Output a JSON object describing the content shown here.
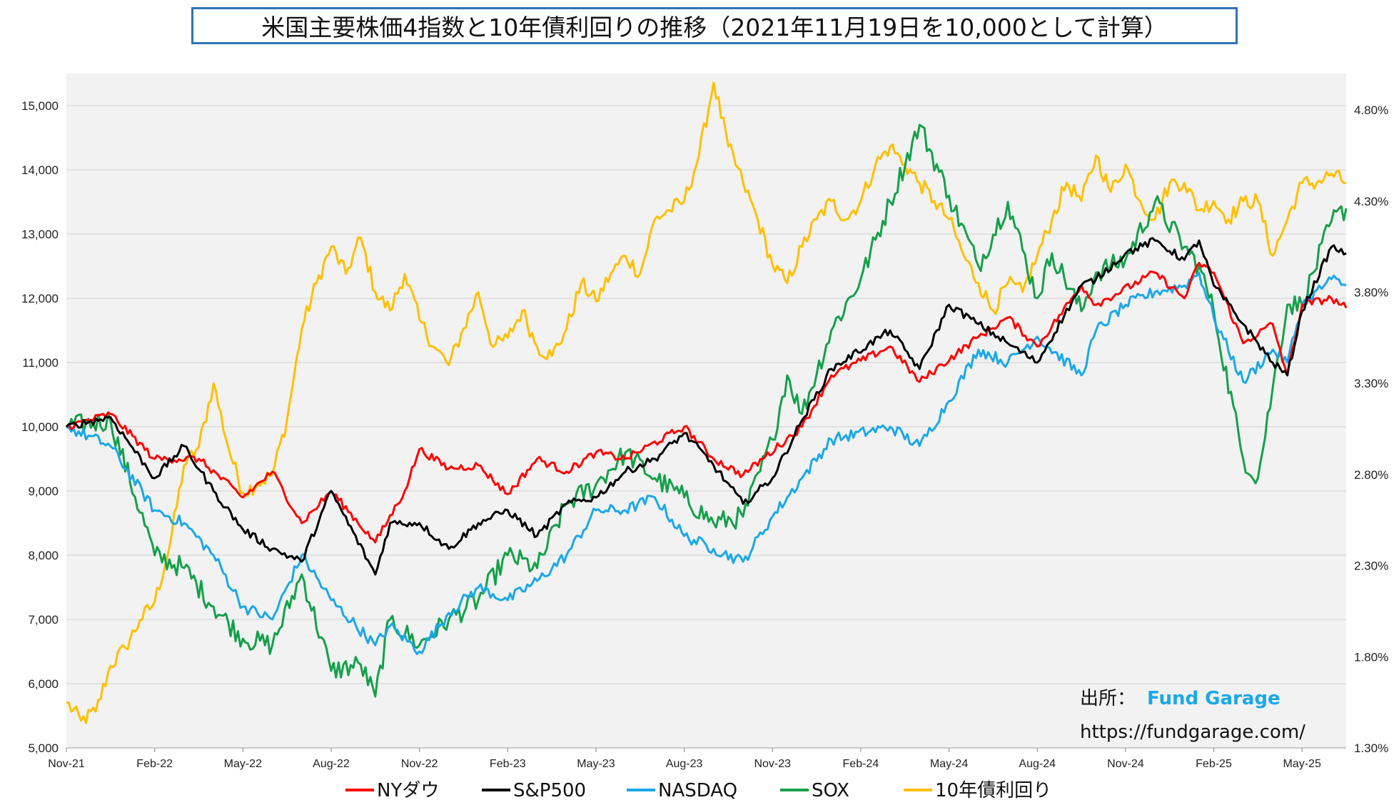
{
  "chart_data": {
    "type": "line",
    "title": "米国主要株価4指数と10年債利回りの推移（2021年11月19日を10,000として計算）",
    "x_ticks": [
      "Nov-21",
      "Feb-22",
      "May-22",
      "Aug-22",
      "Nov-22",
      "Feb-23",
      "May-23",
      "Aug-23",
      "Nov-23",
      "Feb-24",
      "May-24",
      "Aug-24",
      "Nov-24",
      "Feb-25",
      "May-25"
    ],
    "y_left": {
      "ylim": [
        5000,
        15500
      ],
      "ticks": [
        5000,
        6000,
        7000,
        8000,
        9000,
        10000,
        11000,
        12000,
        13000,
        14000,
        15000
      ],
      "tick_labels": [
        "5,000",
        "6,000",
        "7,000",
        "8,000",
        "9,000",
        "10,000",
        "11,000",
        "12,000",
        "13,000",
        "14,000",
        "15,000"
      ]
    },
    "y_right": {
      "ylim": [
        1.3,
        5.0
      ],
      "ticks": [
        1.3,
        1.8,
        2.3,
        2.8,
        3.3,
        3.8,
        4.3,
        4.8
      ],
      "tick_labels": [
        "1.30%",
        "1.80%",
        "2.30%",
        "2.80%",
        "3.30%",
        "3.80%",
        "4.30%",
        "4.80%"
      ]
    },
    "grid": true,
    "legend_position": "bottom",
    "x_range_months": [
      0,
      43.5
    ],
    "series": [
      {
        "name": "NYダウ",
        "color": "#ff0000",
        "axis": "left",
        "x": [
          0,
          1.5,
          3,
          4.5,
          6,
          7,
          8,
          9,
          10.5,
          11.5,
          12,
          13,
          14,
          15,
          16,
          17,
          18,
          19,
          21,
          22,
          23,
          25,
          26,
          28,
          29,
          31,
          32,
          33,
          34.5,
          35,
          37,
          38,
          38.5,
          39,
          40,
          41,
          41.5,
          42,
          43,
          43.5
        ],
        "y": [
          10000,
          10200,
          9500,
          9500,
          8900,
          9300,
          8500,
          9000,
          8200,
          9000,
          9650,
          9350,
          9400,
          8950,
          9500,
          9300,
          9600,
          9500,
          10000,
          9500,
          9250,
          10000,
          10800,
          11250,
          10700,
          11400,
          11700,
          11250,
          12200,
          11900,
          12400,
          12000,
          12550,
          12400,
          11300,
          11600,
          10800,
          11900,
          12000,
          11850
        ]
      },
      {
        "name": "S&P500",
        "color": "#000000",
        "axis": "left",
        "x": [
          0,
          1.5,
          3,
          4,
          5,
          6,
          7,
          8,
          9,
          10.5,
          11,
          12,
          13,
          14,
          15,
          16,
          17,
          18,
          19,
          20,
          21,
          22,
          23,
          24,
          25,
          26,
          28,
          29,
          30,
          31,
          32,
          33,
          34.5,
          35,
          36,
          37,
          38,
          38.5,
          39,
          40,
          41,
          41.5,
          42,
          43,
          43.5
        ],
        "y": [
          10000,
          10150,
          9200,
          9700,
          9000,
          8400,
          8100,
          7900,
          9000,
          7700,
          8500,
          8500,
          8100,
          8500,
          8700,
          8300,
          8800,
          8900,
          9300,
          9500,
          9900,
          9400,
          8800,
          9200,
          10100,
          10900,
          11500,
          10900,
          11900,
          11600,
          11300,
          11000,
          12200,
          12300,
          12700,
          12900,
          12600,
          12900,
          12200,
          11600,
          11000,
          10800,
          11800,
          12800,
          12700
        ]
      },
      {
        "name": "NASDAQ",
        "color": "#1aa8e8",
        "axis": "left",
        "x": [
          0,
          1.5,
          3,
          4,
          5,
          6,
          7,
          8,
          9,
          10.5,
          11,
          12,
          13,
          14,
          15,
          16,
          17,
          18,
          19,
          20,
          21,
          22,
          23,
          24,
          25,
          26,
          28,
          29,
          30,
          31,
          32,
          33,
          34.5,
          35,
          36,
          37,
          38,
          38.5,
          39,
          40,
          41,
          41.5,
          42,
          43,
          43.5
        ],
        "y": [
          10000,
          9700,
          8700,
          8500,
          8000,
          7200,
          7000,
          8000,
          7300,
          6600,
          6900,
          6500,
          7100,
          7500,
          7300,
          7600,
          8000,
          8700,
          8700,
          8900,
          8300,
          8100,
          7900,
          8600,
          9200,
          9800,
          10000,
          9700,
          10400,
          11200,
          11000,
          11400,
          10800,
          11500,
          11900,
          12100,
          12200,
          12400,
          11700,
          10700,
          11200,
          11000,
          11900,
          12300,
          12200
        ]
      },
      {
        "name": "SOX",
        "color": "#14a04a",
        "axis": "left",
        "x": [
          0,
          1.5,
          3,
          4,
          5,
          6,
          7,
          8,
          9,
          10,
          10.5,
          11,
          12,
          13,
          14,
          15,
          16,
          17,
          18,
          19,
          20,
          21,
          22,
          23,
          24,
          24.5,
          25,
          26,
          27,
          28,
          29,
          30,
          31,
          32,
          33,
          33.5,
          34.5,
          35,
          36,
          37,
          38,
          38.5,
          39,
          40,
          40.5,
          41,
          41.5,
          42,
          43,
          43.5
        ],
        "y": [
          10000,
          10100,
          8000,
          7800,
          7200,
          6700,
          6600,
          7700,
          6200,
          6300,
          5800,
          7000,
          6600,
          7000,
          7300,
          8000,
          7800,
          8800,
          9100,
          9600,
          9200,
          8900,
          8500,
          8600,
          9800,
          10800,
          10200,
          11500,
          12300,
          13500,
          14700,
          13600,
          12500,
          13500,
          12000,
          12700,
          11800,
          12400,
          12600,
          13500,
          12800,
          12500,
          11800,
          9500,
          9200,
          10600,
          11900,
          11900,
          13200,
          13400
        ]
      },
      {
        "name": "10年債利回り",
        "color": "#ffc000",
        "axis": "right",
        "x": [
          0,
          0.5,
          1,
          1.5,
          2,
          2.5,
          3,
          3.5,
          4,
          4.5,
          5,
          5.5,
          6,
          6.5,
          7,
          7.5,
          8,
          8.5,
          9,
          9.5,
          10,
          10.5,
          11,
          11.5,
          12,
          12.5,
          13,
          13.5,
          14,
          14.5,
          15,
          15.5,
          16,
          16.5,
          17,
          17.5,
          18,
          18.5,
          19,
          19.5,
          20,
          20.5,
          21,
          21.5,
          22,
          22.5,
          23,
          23.5,
          24,
          24.5,
          25,
          25.5,
          26,
          26.5,
          27,
          27.5,
          28,
          28.5,
          29,
          29.5,
          30,
          30.5,
          31,
          31.5,
          32,
          32.5,
          33,
          33.5,
          34,
          34.5,
          35,
          35.5,
          36,
          36.5,
          37,
          37.5,
          38,
          38.5,
          39,
          39.5,
          40,
          40.5,
          41,
          41.5,
          42,
          42.5,
          43,
          43.5
        ],
        "y": [
          1.55,
          1.45,
          1.5,
          1.75,
          1.85,
          2.0,
          2.1,
          2.4,
          2.85,
          2.95,
          3.3,
          2.95,
          2.7,
          2.75,
          2.8,
          3.1,
          3.6,
          3.85,
          4.05,
          3.9,
          4.1,
          3.8,
          3.7,
          3.9,
          3.65,
          3.5,
          3.4,
          3.6,
          3.8,
          3.5,
          3.55,
          3.7,
          3.5,
          3.45,
          3.6,
          3.85,
          3.75,
          3.9,
          4.0,
          3.9,
          4.2,
          4.25,
          4.3,
          4.55,
          4.95,
          4.6,
          4.4,
          4.2,
          3.95,
          3.85,
          4.05,
          4.2,
          4.3,
          4.2,
          4.3,
          4.5,
          4.6,
          4.5,
          4.4,
          4.3,
          4.2,
          4.0,
          3.85,
          3.7,
          3.85,
          3.8,
          4.0,
          4.2,
          4.4,
          4.3,
          4.55,
          4.35,
          4.5,
          4.3,
          4.2,
          4.4,
          4.4,
          4.25,
          4.3,
          4.2,
          4.3,
          4.3,
          4.0,
          4.2,
          4.4,
          4.4,
          4.45,
          4.4
        ]
      }
    ]
  },
  "source": {
    "label": "出所：",
    "brand": "Fund Garage",
    "brand_color": "#1aa8e8",
    "url": "https://fundgarage.com/"
  }
}
